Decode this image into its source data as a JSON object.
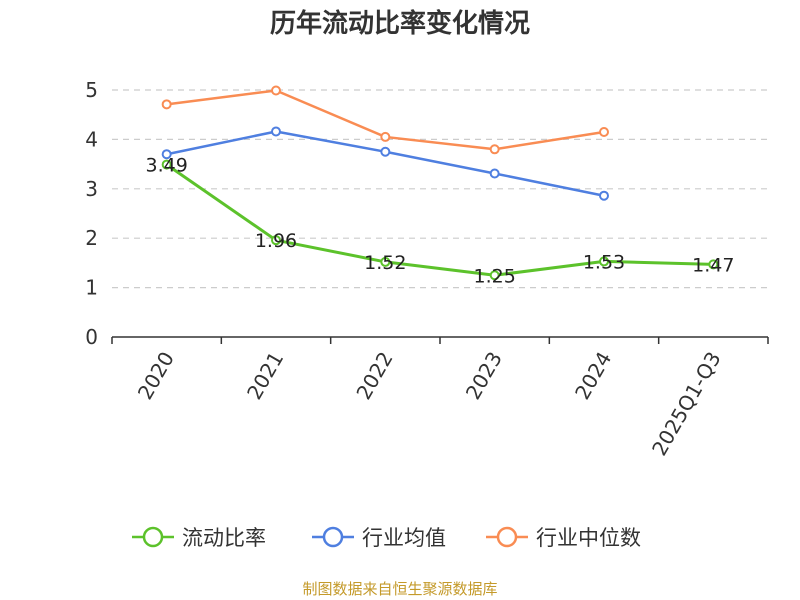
{
  "chart_data": {
    "type": "line",
    "title": "历年流动比率变化情况",
    "categories": [
      "2020",
      "2021",
      "2022",
      "2023",
      "2024",
      "2025Q1-Q3"
    ],
    "ylim": [
      0,
      5
    ],
    "yticks": [
      "0",
      "1",
      "2",
      "3",
      "4",
      "5"
    ],
    "grid": true,
    "legend_position": "bottom",
    "series": [
      {
        "name": "流动比率",
        "color": "#5cc22b",
        "values": [
          3.49,
          1.96,
          1.52,
          1.25,
          1.53,
          1.47
        ],
        "labels": [
          "3.49",
          "1.96",
          "1.52",
          "1.25",
          "1.53",
          "1.47"
        ]
      },
      {
        "name": "行业均值",
        "color": "#4f7fe0",
        "values": [
          3.7,
          4.16,
          3.75,
          3.31,
          2.86,
          null
        ]
      },
      {
        "name": "行业中位数",
        "color": "#f98c53",
        "values": [
          4.71,
          4.99,
          4.05,
          3.8,
          4.15,
          null
        ]
      }
    ]
  },
  "source": "制图数据来自恒生聚源数据库"
}
